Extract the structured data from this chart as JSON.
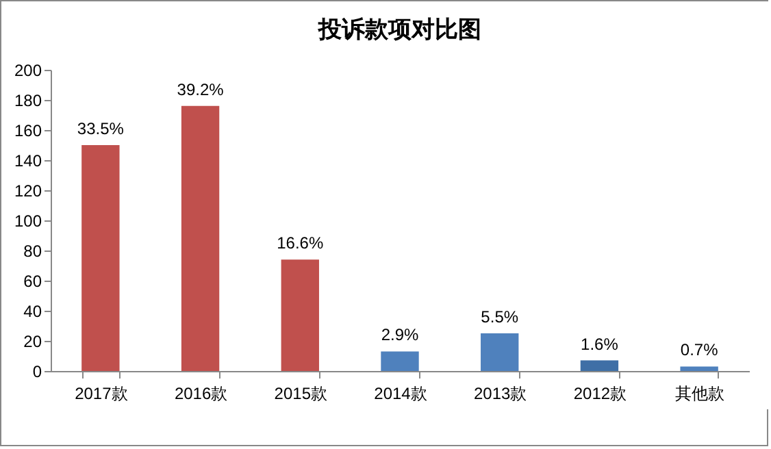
{
  "chart_data": {
    "type": "bar",
    "title": "投诉款项对比图",
    "categories": [
      "2017款",
      "2016款",
      "2015款",
      "2014款",
      "2013款",
      "2012款",
      "其他款"
    ],
    "values": [
      150,
      176,
      74,
      13,
      25,
      7,
      3
    ],
    "colors": [
      "#c0504d",
      "#c0504d",
      "#c0504d",
      "#4f81bd",
      "#4f81bd",
      "#3f6fa6",
      "#4f81bd"
    ],
    "annotations": [
      {
        "text": "33.5%",
        "x": "2017款",
        "y": 150
      },
      {
        "text": "39.2%",
        "x": "2016款",
        "y": 176
      },
      {
        "text": "16.6%",
        "x": "2015款",
        "y": 74
      },
      {
        "text": "2.9%",
        "x": "2014款",
        "y": 13
      },
      {
        "text": "5.5%",
        "x": "2013款",
        "y": 25
      },
      {
        "text": "1.6%",
        "x": "2012款",
        "y": 7
      },
      {
        "text": "0.7%",
        "x": "其他款",
        "y": 3
      }
    ],
    "ylim": [
      0,
      200
    ],
    "yticks": [
      0,
      20,
      40,
      60,
      80,
      100,
      120,
      140,
      160,
      180,
      200
    ]
  }
}
